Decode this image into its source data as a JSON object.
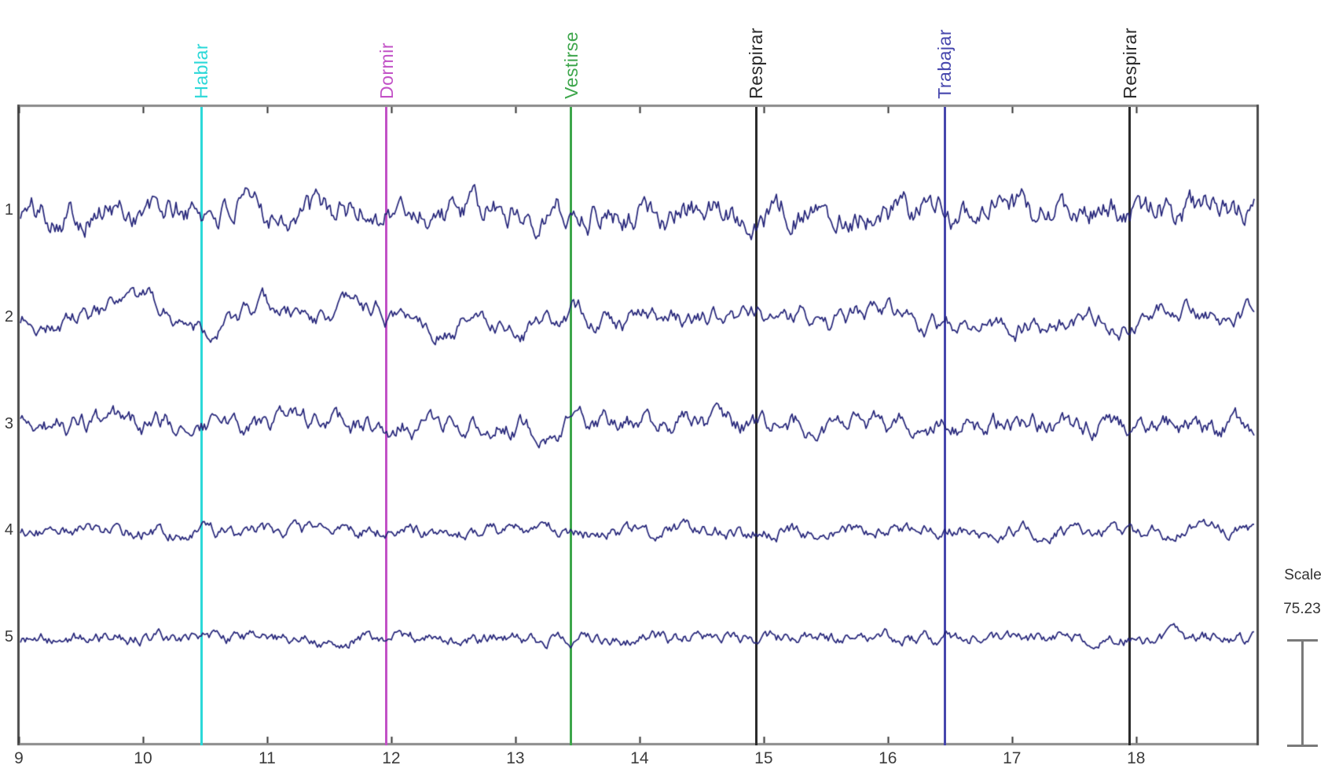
{
  "chart_data": {
    "type": "line",
    "subtype": "eeg-multichannel-time-series",
    "title": "",
    "xlabel": "",
    "ylabel": "",
    "x_ticks": [
      "9",
      "10",
      "11",
      "12",
      "13",
      "14",
      "15",
      "16",
      "17",
      "18"
    ],
    "x_range": [
      9,
      18.97
    ],
    "grid": false,
    "legend_position": "none",
    "trace_color": "#26267a",
    "channel_labels": [
      "1",
      "2",
      "3",
      "4",
      "5"
    ],
    "channels": [
      {
        "label": "1",
        "amp": 26,
        "damp": 0.8,
        "seed": 101
      },
      {
        "label": "2",
        "amp": 17,
        "damp": 0.93,
        "seed": 202
      },
      {
        "label": "3",
        "amp": 18,
        "damp": 0.82,
        "seed": 303
      },
      {
        "label": "4",
        "amp": 12,
        "damp": 0.78,
        "seed": 404
      },
      {
        "label": "5",
        "amp": 11,
        "damp": 0.8,
        "seed": 505
      }
    ],
    "events": [
      {
        "label": "Hablar",
        "time": 10.47,
        "color": "#2bd8d8"
      },
      {
        "label": "Dormir",
        "time": 11.96,
        "color": "#c251c6"
      },
      {
        "label": "Vestirse",
        "time": 13.45,
        "color": "#3da64b"
      },
      {
        "label": "Respirar",
        "time": 14.94,
        "color": "#2b2b2b"
      },
      {
        "label": "Trabajar",
        "time": 16.46,
        "color": "#4646ad"
      },
      {
        "label": "Respirar",
        "time": 17.95,
        "color": "#2b2b2b"
      }
    ],
    "scale_label": "Scale",
    "scale_value": "75.23"
  }
}
